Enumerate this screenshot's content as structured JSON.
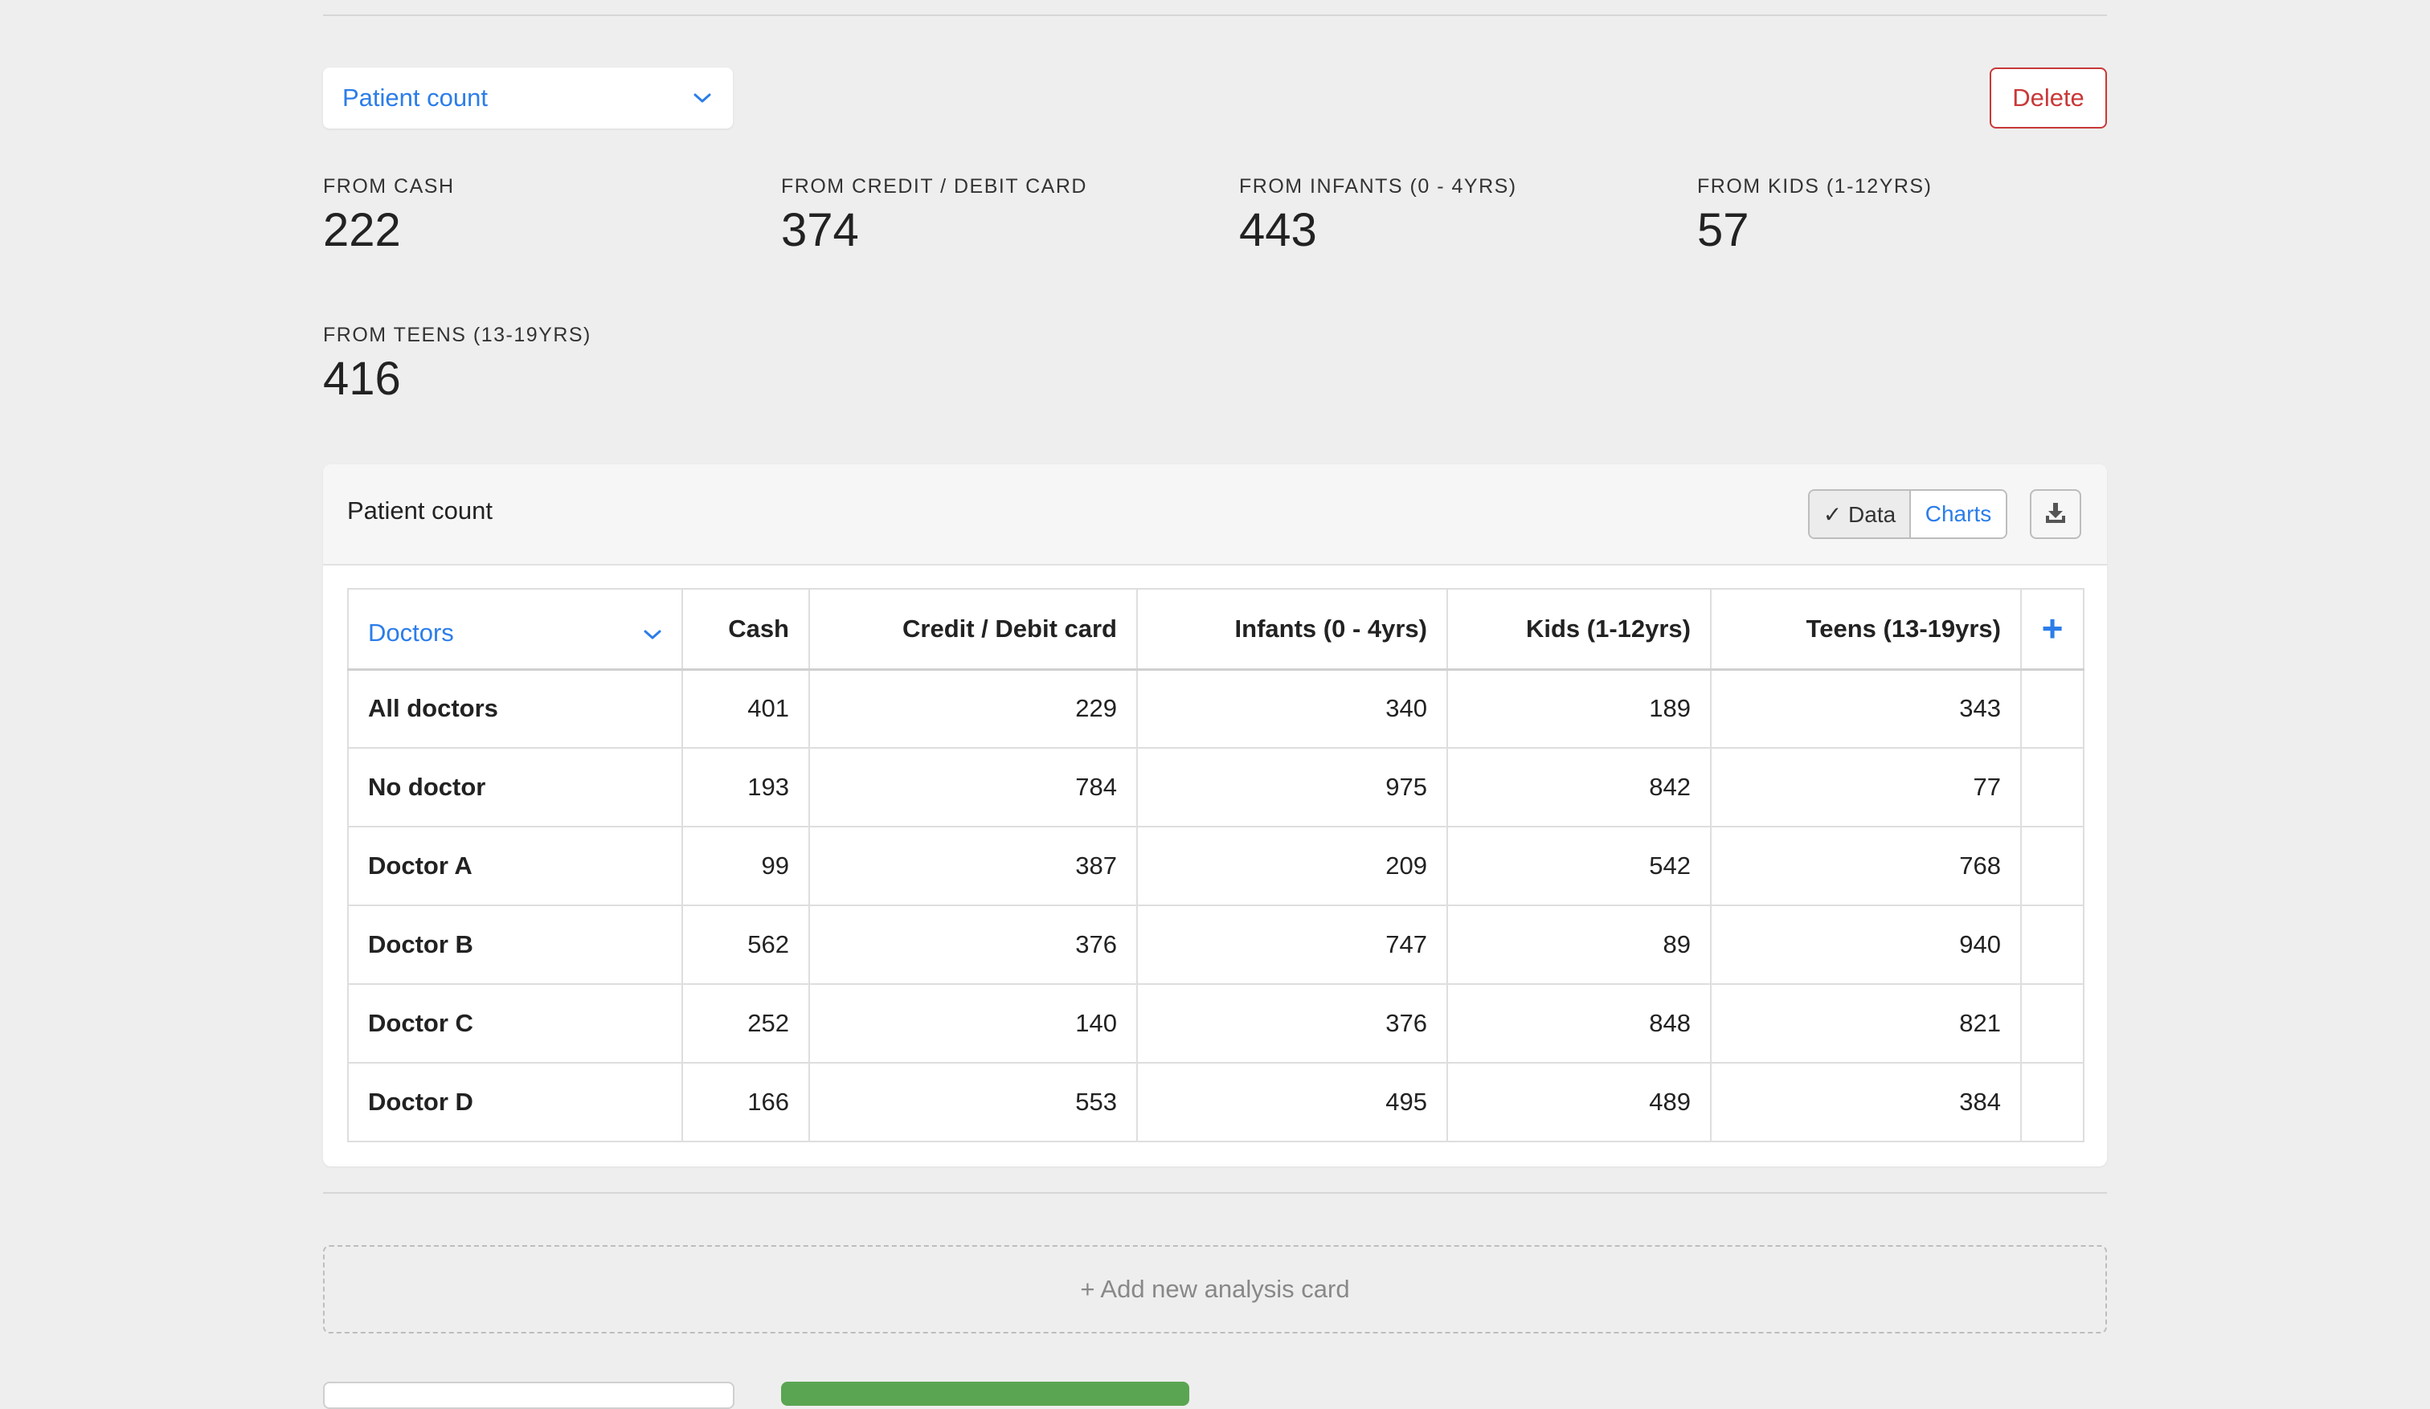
{
  "metric_selector": {
    "value": "Patient count"
  },
  "delete_label": "Delete",
  "stats": [
    {
      "label": "FROM CASH",
      "value": "222"
    },
    {
      "label": "FROM CREDIT / DEBIT CARD",
      "value": "374"
    },
    {
      "label": "FROM INFANTS (0 - 4YRS)",
      "value": "443"
    },
    {
      "label": "FROM KIDS (1-12YRS)",
      "value": "57"
    },
    {
      "label": "FROM TEENS (13-19YRS)",
      "value": "416"
    }
  ],
  "card": {
    "title": "Patient count",
    "toggle": {
      "data": "✓ Data",
      "charts": "Charts"
    }
  },
  "table": {
    "dimension_label": "Doctors",
    "columns": [
      "Cash",
      "Credit / Debit card",
      "Infants (0 - 4yrs)",
      "Kids (1-12yrs)",
      "Teens (13-19yrs)"
    ],
    "add_column": "+",
    "rows": [
      {
        "label": "All doctors",
        "values": [
          "401",
          "229",
          "340",
          "189",
          "343"
        ]
      },
      {
        "label": "No doctor",
        "values": [
          "193",
          "784",
          "975",
          "842",
          "77"
        ]
      },
      {
        "label": "Doctor A",
        "values": [
          "99",
          "387",
          "209",
          "542",
          "768"
        ]
      },
      {
        "label": "Doctor B",
        "values": [
          "562",
          "376",
          "747",
          "89",
          "940"
        ]
      },
      {
        "label": "Doctor C",
        "values": [
          "252",
          "140",
          "376",
          "848",
          "821"
        ]
      },
      {
        "label": "Doctor D",
        "values": [
          "166",
          "553",
          "495",
          "489",
          "384"
        ]
      }
    ]
  },
  "add_card_label": "+ Add new analysis card",
  "colors": {
    "accent": "#2b7de9",
    "danger": "#c93838",
    "success": "#5aa552"
  }
}
